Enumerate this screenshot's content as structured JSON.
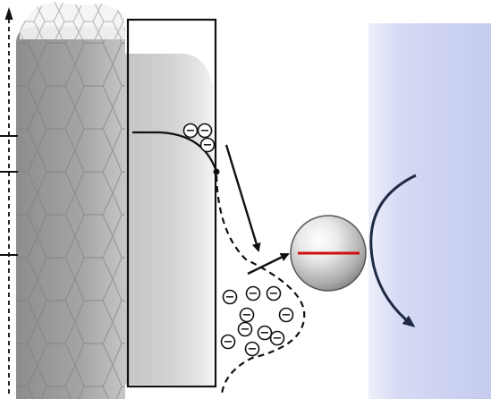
{
  "diagram": {
    "electron_symbol": "−",
    "electron_icon": "minus-charge-icon",
    "colors": {
      "electrolyte_gradient_start": "#c7cdf0",
      "electrolyte_gradient_end": "#eef0fb",
      "nanotube_mesh": "#7a7a7a",
      "probe_line": "#d01010",
      "arrow": "#111111",
      "current_arrow": "#1f2a44"
    },
    "axis_tick_count": 3,
    "surface_electron_count": 3,
    "diffuse_electron_count": 10
  }
}
